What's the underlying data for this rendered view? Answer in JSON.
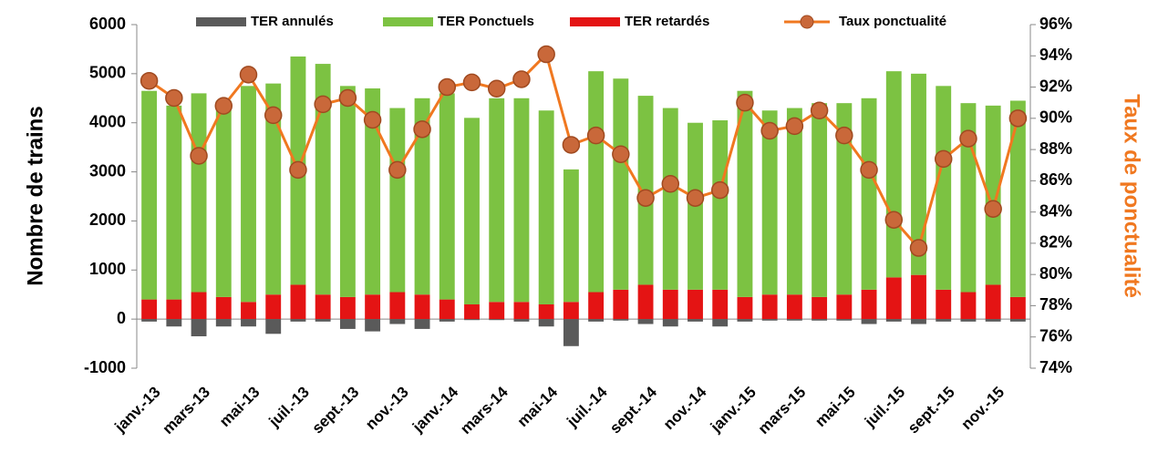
{
  "chart_data": {
    "type": "bar-line",
    "categories": [
      "janv.-13",
      null,
      "mars-13",
      null,
      "mai-13",
      null,
      "juil.-13",
      null,
      "sept.-13",
      null,
      "nov.-13",
      null,
      "janv.-14",
      null,
      "mars-14",
      null,
      "mai-14",
      null,
      "juil.-14",
      null,
      "sept.-14",
      null,
      "nov.-14",
      null,
      "janv.-15",
      null,
      "mars-15",
      null,
      "mai-15",
      null,
      "juil.-15",
      null,
      "sept.-15",
      null,
      "nov.-15",
      null
    ],
    "ylabel": "Nombre de trains",
    "y2label": "Taux de ponctualité",
    "ylim": [
      -1000,
      6000
    ],
    "yticks": [
      -1000,
      0,
      1000,
      2000,
      3000,
      4000,
      5000,
      6000
    ],
    "y2lim": [
      74,
      96
    ],
    "y2ticks": [
      {
        "value": 74,
        "label": "74%"
      },
      {
        "value": 76,
        "label": "76%"
      },
      {
        "value": 78,
        "label": "78%"
      },
      {
        "value": 80,
        "label": "80%"
      },
      {
        "value": 82,
        "label": "82%"
      },
      {
        "value": 84,
        "label": "84%"
      },
      {
        "value": 86,
        "label": "86%"
      },
      {
        "value": 88,
        "label": "88%"
      },
      {
        "value": 90,
        "label": "90%"
      },
      {
        "value": 92,
        "label": "92%"
      },
      {
        "value": 94,
        "label": "94%"
      },
      {
        "value": 96,
        "label": "96%"
      }
    ],
    "legend": "top",
    "series": [
      {
        "name": "TER annulés",
        "type": "bar",
        "color": "#5a5a5a",
        "values": [
          -50,
          -150,
          -350,
          -150,
          -150,
          -300,
          -50,
          -50,
          -200,
          -250,
          -100,
          -200,
          -50,
          -20,
          -20,
          -50,
          -150,
          -550,
          -50,
          -30,
          -100,
          -150,
          -50,
          -150,
          -50,
          -30,
          -30,
          -30,
          -30,
          -100,
          -50,
          -100,
          -50,
          -50,
          -50,
          -50
        ]
      },
      {
        "name": "TER Ponctuels",
        "type": "bar",
        "color": "#7cc242",
        "values": [
          4250,
          3950,
          4050,
          4000,
          4400,
          4300,
          4650,
          4700,
          4300,
          4200,
          3750,
          4000,
          4200,
          3800,
          4150,
          4150,
          3950,
          2700,
          4500,
          4300,
          3850,
          3700,
          3400,
          3450,
          4200,
          3750,
          3800,
          3950,
          3900,
          3900,
          4200,
          4100,
          4150,
          3850,
          3650,
          4000
        ]
      },
      {
        "name": "TER retardés",
        "type": "bar",
        "color": "#e41414",
        "values": [
          400,
          400,
          550,
          450,
          350,
          500,
          700,
          500,
          450,
          500,
          550,
          500,
          400,
          300,
          350,
          350,
          300,
          350,
          550,
          600,
          700,
          600,
          600,
          600,
          450,
          500,
          500,
          450,
          500,
          600,
          850,
          900,
          600,
          550,
          700,
          450
        ]
      },
      {
        "name": "Taux ponctualité",
        "type": "line",
        "axis": "y2",
        "color": "#f07820",
        "values": [
          92.4,
          91.3,
          87.6,
          90.8,
          92.8,
          90.2,
          86.7,
          90.9,
          91.3,
          89.9,
          86.7,
          89.3,
          92.0,
          92.3,
          91.9,
          92.5,
          94.1,
          88.3,
          88.9,
          87.7,
          84.9,
          85.8,
          84.9,
          85.4,
          91.0,
          89.2,
          89.5,
          90.5,
          88.9,
          86.7,
          83.5,
          81.7,
          87.4,
          88.7,
          84.2,
          90.0
        ]
      }
    ]
  }
}
